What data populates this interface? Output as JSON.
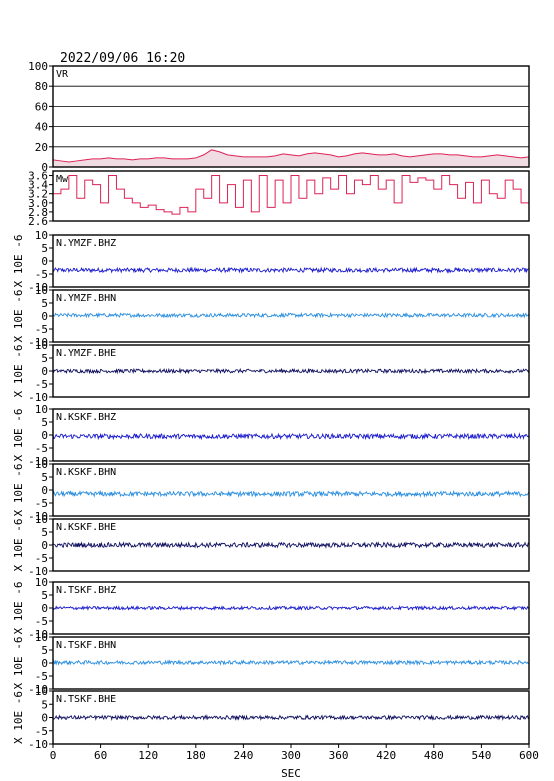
{
  "title": "2022/09/06 16:20",
  "xlabel": "SEC",
  "unit_label": "X 10E -6",
  "chart_data": {
    "type": "line",
    "title": "2022/09/06 16:20",
    "xlabel": "SEC",
    "xlim": [
      0,
      600
    ],
    "x_ticks": [
      0,
      60,
      120,
      180,
      240,
      300,
      360,
      420,
      480,
      540,
      600
    ],
    "panels": [
      {
        "name": "VR",
        "label": "VR",
        "ylim": [
          0,
          100
        ],
        "y_ticks": [
          0,
          20,
          40,
          60,
          80,
          100
        ],
        "grid": true,
        "color": "#dd2255",
        "fill": "#f0dde3",
        "x": [
          0,
          10,
          20,
          30,
          40,
          50,
          60,
          70,
          80,
          90,
          100,
          110,
          120,
          130,
          140,
          150,
          160,
          170,
          180,
          190,
          200,
          210,
          220,
          230,
          240,
          250,
          260,
          270,
          280,
          290,
          300,
          310,
          320,
          330,
          340,
          350,
          360,
          370,
          380,
          390,
          400,
          410,
          420,
          430,
          440,
          450,
          460,
          470,
          480,
          490,
          500,
          510,
          520,
          530,
          540,
          550,
          560,
          570,
          580,
          590,
          600
        ],
        "values": [
          7,
          6,
          5,
          6,
          7,
          8,
          8,
          9,
          8,
          8,
          7,
          8,
          8,
          9,
          9,
          8,
          8,
          8,
          9,
          12,
          17,
          15,
          12,
          11,
          10,
          10,
          10,
          10,
          11,
          13,
          12,
          11,
          13,
          14,
          13,
          12,
          10,
          11,
          13,
          14,
          13,
          12,
          12,
          13,
          11,
          10,
          11,
          12,
          13,
          13,
          12,
          12,
          11,
          10,
          10,
          11,
          12,
          11,
          10,
          9,
          10
        ]
      },
      {
        "name": "Mw",
        "label": "Mw",
        "ylim": [
          2.6,
          3.7
        ],
        "y_ticks": [
          2.6,
          2.8,
          3.0,
          3.2,
          3.4,
          3.6
        ],
        "grid": false,
        "color": "#dd2255",
        "x": [
          0,
          10,
          20,
          30,
          40,
          50,
          60,
          70,
          80,
          90,
          100,
          110,
          120,
          130,
          140,
          150,
          160,
          170,
          180,
          190,
          200,
          210,
          220,
          230,
          240,
          250,
          260,
          270,
          280,
          290,
          300,
          310,
          320,
          330,
          340,
          350,
          360,
          370,
          380,
          390,
          400,
          410,
          420,
          430,
          440,
          450,
          460,
          470,
          480,
          490,
          500,
          510,
          520,
          530,
          540,
          550,
          560,
          570,
          580,
          590,
          600
        ],
        "values": [
          3.2,
          3.3,
          3.6,
          3.1,
          3.5,
          3.4,
          3.0,
          3.6,
          3.3,
          3.1,
          3.0,
          2.9,
          2.95,
          2.85,
          2.8,
          2.75,
          2.9,
          2.8,
          3.3,
          3.1,
          3.6,
          3.0,
          3.4,
          2.9,
          3.5,
          2.8,
          3.6,
          2.9,
          3.5,
          3.0,
          3.6,
          3.1,
          3.5,
          3.2,
          3.55,
          3.3,
          3.6,
          3.2,
          3.5,
          3.4,
          3.6,
          3.3,
          3.5,
          3.0,
          3.6,
          3.45,
          3.55,
          3.5,
          3.3,
          3.6,
          3.4,
          3.1,
          3.45,
          3.0,
          3.5,
          3.2,
          3.1,
          3.5,
          3.3,
          3.0,
          3.1
        ]
      },
      {
        "name": "N.YMZF.BHZ",
        "label": "N.YMZF.BHZ",
        "ylim": [
          -10,
          10
        ],
        "y_ticks": [
          -10,
          -5,
          0,
          5,
          10
        ],
        "color": "#1a1acc",
        "baseline": -3.5,
        "amplitude": 0.8
      },
      {
        "name": "N.YMZF.BHN",
        "label": "N.YMZF.BHN",
        "ylim": [
          -10,
          10
        ],
        "y_ticks": [
          -10,
          -5,
          0,
          5,
          10
        ],
        "color": "#2b8fe0",
        "baseline": 0.3,
        "amplitude": 0.7
      },
      {
        "name": "N.YMZF.BHE",
        "label": "N.YMZF.BHE",
        "ylim": [
          -10,
          10
        ],
        "y_ticks": [
          -10,
          -5,
          0,
          5,
          10
        ],
        "color": "#101060",
        "baseline": 0.0,
        "amplitude": 0.7
      },
      {
        "name": "N.KSKF.BHZ",
        "label": "N.KSKF.BHZ",
        "ylim": [
          -10,
          10
        ],
        "y_ticks": [
          -10,
          -5,
          0,
          5,
          10
        ],
        "color": "#1a1acc",
        "baseline": -0.5,
        "amplitude": 0.9
      },
      {
        "name": "N.KSKF.BHN",
        "label": "N.KSKF.BHN",
        "ylim": [
          -10,
          10
        ],
        "y_ticks": [
          -10,
          -5,
          0,
          5,
          10
        ],
        "color": "#2b8fe0",
        "baseline": -1.5,
        "amplitude": 0.9
      },
      {
        "name": "N.KSKF.BHE",
        "label": "N.KSKF.BHE",
        "ylim": [
          -10,
          10
        ],
        "y_ticks": [
          -10,
          -5,
          0,
          5,
          10
        ],
        "color": "#101060",
        "baseline": 0.0,
        "amplitude": 0.9
      },
      {
        "name": "N.TSKF.BHZ",
        "label": "N.TSKF.BHZ",
        "ylim": [
          -10,
          10
        ],
        "y_ticks": [
          -10,
          -5,
          0,
          5,
          10
        ],
        "color": "#1a1acc",
        "baseline": 0.0,
        "amplitude": 0.6
      },
      {
        "name": "N.TSKF.BHN",
        "label": "N.TSKF.BHN",
        "ylim": [
          -10,
          10
        ],
        "y_ticks": [
          -10,
          -5,
          0,
          5,
          10
        ],
        "color": "#2b8fe0",
        "baseline": 0.2,
        "amplitude": 0.7
      },
      {
        "name": "N.TSKF.BHE",
        "label": "N.TSKF.BHE",
        "ylim": [
          -10,
          10
        ],
        "y_ticks": [
          -10,
          -5,
          0,
          5,
          10
        ],
        "color": "#101060",
        "baseline": 0.0,
        "amplitude": 0.7
      }
    ]
  }
}
